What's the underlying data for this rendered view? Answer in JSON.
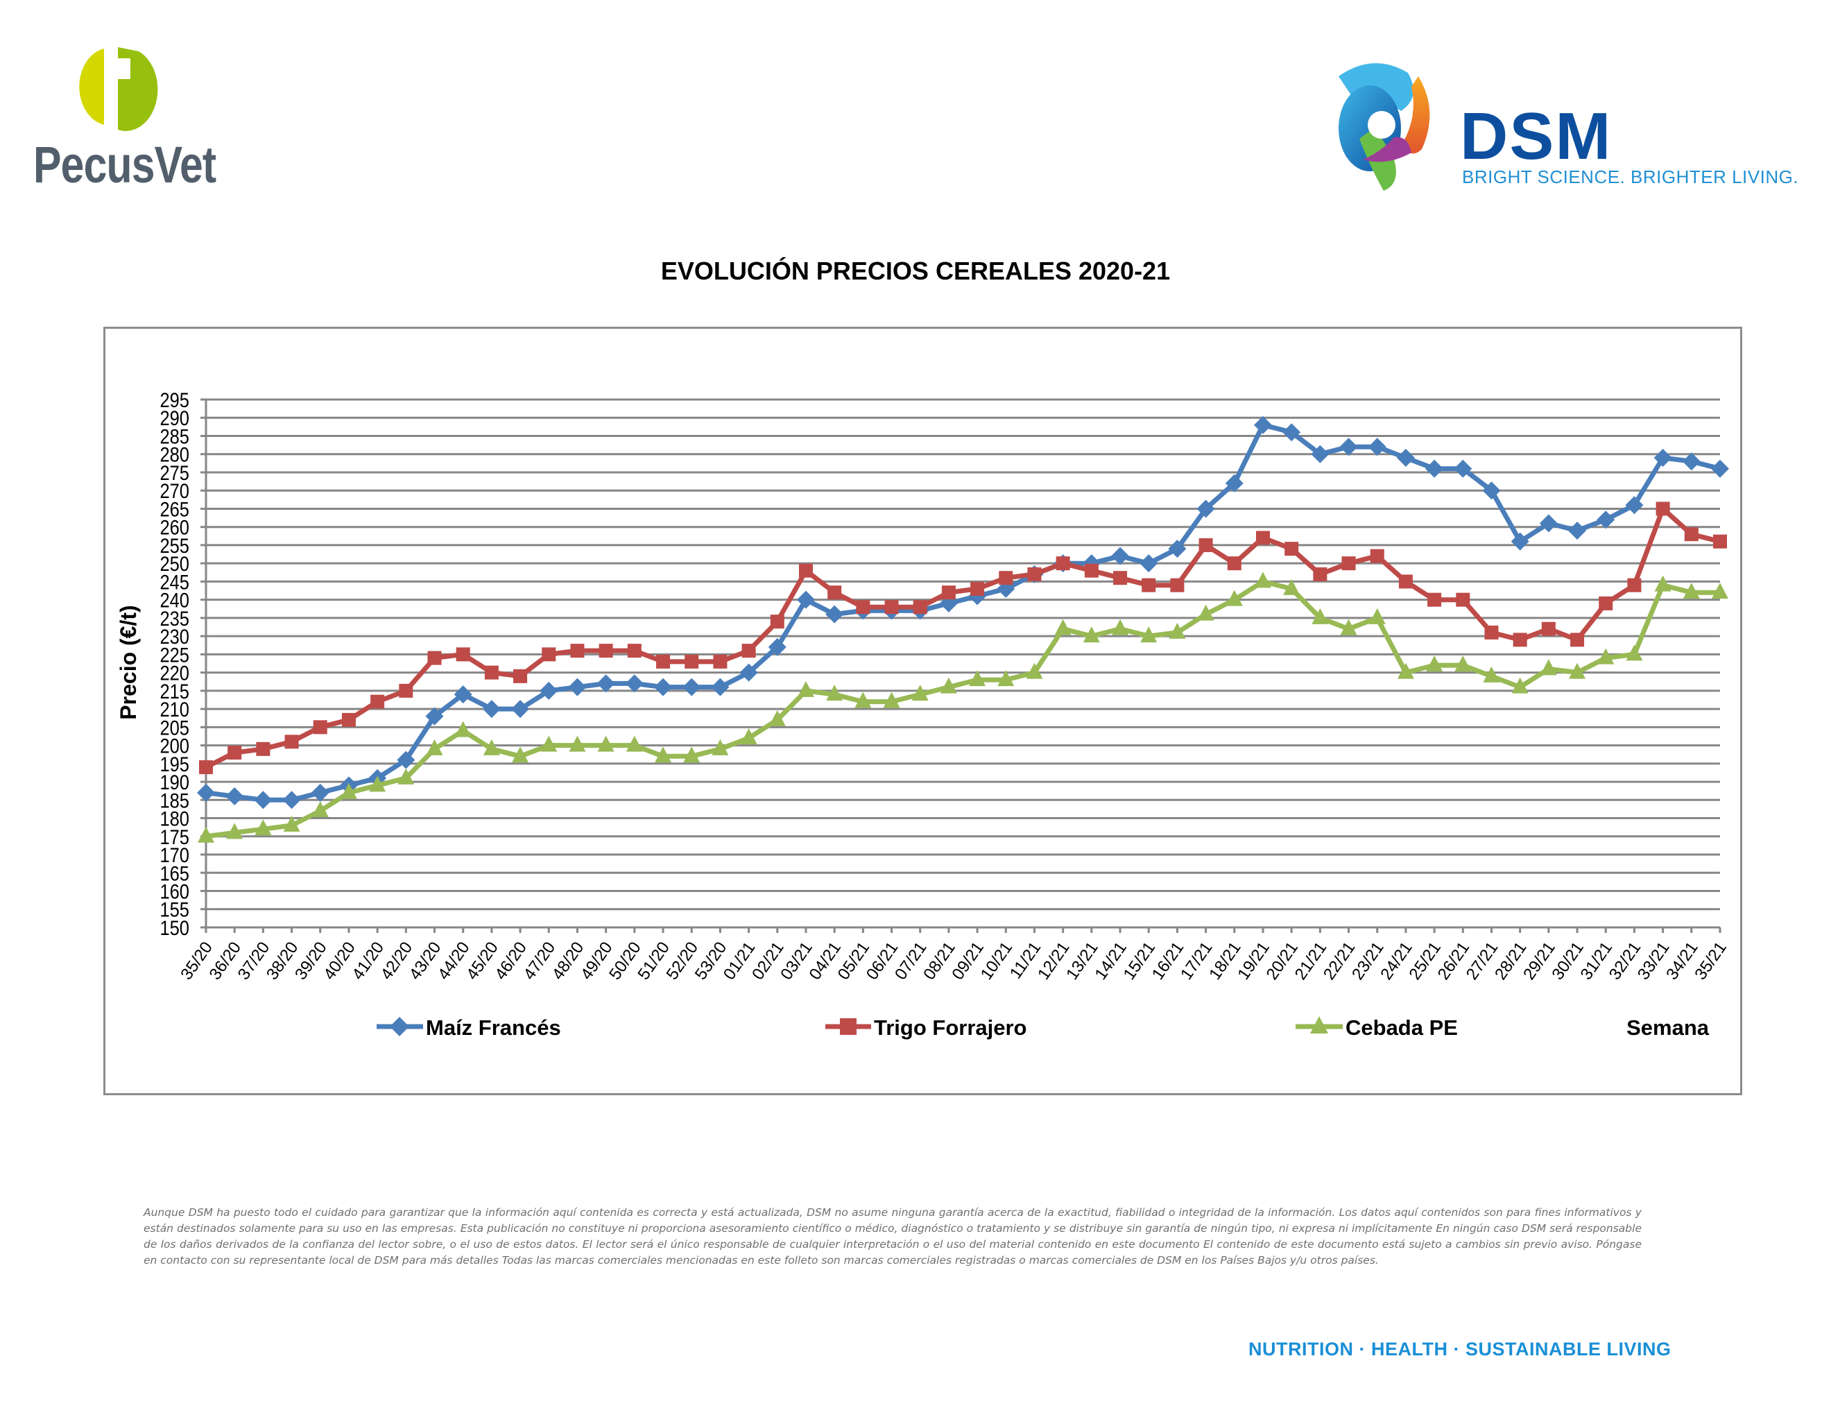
{
  "header": {
    "left_logo_text": "PecusVet",
    "right_logo_text": "DSM",
    "right_logo_tagline": "BRIGHT SCIENCE. BRIGHTER LIVING."
  },
  "footer": {
    "disclaimer": "Aunque DSM ha puesto todo el cuidado para garantizar que la información aquí contenida es correcta y está actualizada, DSM no asume ninguna garantía acerca de la exactitud, fiabilidad o integridad de la información. Los datos aquí contenidos son para fines informativos y están destinados solamente para su uso en las empresas. Esta publicación no constituye ni proporciona asesoramiento científico o médico, diagnóstico o tratamiento y se distribuye sin garantía de ningún tipo, ni expresa ni implícitamente En ningún caso DSM será responsable de los daños derivados de la confianza del lector sobre, o el uso de estos datos. El lector será el único responsable de cualquier interpretación o el uso del material contenido en este documento El contenido de este documento está sujeto a cambios sin previo aviso. Póngase en contacto con su representante local de DSM para más detalles Todas las marcas comerciales mencionadas en este folleto son marcas comerciales registradas o marcas comerciales de DSM en los Países Bajos y/u otros países.",
    "tagline": "NUTRITION  ·  HEALTH  ·  SUSTAINABLE LIVING"
  },
  "colors": {
    "maiz": "#4a7ebb",
    "trigo": "#be4b48",
    "cebada": "#98b954",
    "grid": "#868686",
    "pecus_light": "#d4d800",
    "pecus_dark": "#97c00e",
    "pecus_text": "#525e6c",
    "dsm_blue": "#0d4f9e",
    "dsm_light_blue": "#1f8fd4"
  },
  "chart_data": {
    "type": "line",
    "title": "EVOLUCIÓN PRECIOS CEREALES 2020-21",
    "xlabel": "Semana",
    "ylabel": "Precio (€/t)",
    "ylim": [
      150,
      295
    ],
    "ytick_step": 5,
    "yticks": [
      "150",
      "155",
      "160",
      "165",
      "170",
      "175",
      "180",
      "185",
      "190",
      "195",
      "200",
      "205",
      "210",
      "215",
      "220",
      "225",
      "230",
      "235",
      "240",
      "245",
      "250",
      "255",
      "260",
      "265",
      "270",
      "275",
      "280",
      "285",
      "290",
      "295"
    ],
    "grid": true,
    "legend_position": "bottom",
    "categories": [
      "35/20",
      "36/20",
      "37/20",
      "38/20",
      "39/20",
      "40/20",
      "41/20",
      "42/20",
      "43/20",
      "44/20",
      "45/20",
      "46/20",
      "47/20",
      "48/20",
      "49/20",
      "50/20",
      "51/20",
      "52/20",
      "53/20",
      "01/21",
      "02/21",
      "03/21",
      "04/21",
      "05/21",
      "06/21",
      "07/21",
      "08/21",
      "09/21",
      "10/21",
      "11/21",
      "12/21",
      "13/21",
      "14/21",
      "15/21",
      "16/21",
      "17/21",
      "18/21",
      "19/21",
      "20/21",
      "21/21",
      "22/21",
      "23/21",
      "24/21",
      "25/21",
      "26/21",
      "27/21",
      "28/21",
      "29/21",
      "30/21",
      "31/21",
      "32/21",
      "33/21",
      "34/21",
      "35/21"
    ],
    "series": [
      {
        "name": "Maíz Francés",
        "marker": "diamond",
        "color_key": "maiz",
        "values": [
          187,
          186,
          185,
          185,
          187,
          189,
          191,
          196,
          208,
          214,
          210,
          210,
          215,
          216,
          217,
          217,
          216,
          216,
          216,
          220,
          227,
          240,
          236,
          237,
          237,
          237,
          239,
          241,
          243,
          247,
          250,
          250,
          252,
          250,
          254,
          265,
          272,
          288,
          286,
          280,
          282,
          282,
          279,
          276,
          276,
          270,
          256,
          261,
          259,
          262,
          266,
          279,
          278,
          276
        ]
      },
      {
        "name": "Trigo Forrajero",
        "marker": "square",
        "color_key": "trigo",
        "values": [
          194,
          198,
          199,
          201,
          205,
          207,
          212,
          215,
          224,
          225,
          220,
          219,
          225,
          226,
          226,
          226,
          223,
          223,
          223,
          226,
          234,
          248,
          242,
          238,
          238,
          238,
          242,
          243,
          246,
          247,
          250,
          248,
          246,
          244,
          244,
          255,
          250,
          257,
          254,
          247,
          250,
          252,
          245,
          240,
          240,
          231,
          229,
          232,
          229,
          239,
          244,
          265,
          258,
          256
        ]
      },
      {
        "name": "Cebada PE",
        "marker": "triangle",
        "color_key": "cebada",
        "values": [
          175,
          176,
          177,
          178,
          182,
          187,
          189,
          191,
          199,
          204,
          199,
          197,
          200,
          200,
          200,
          200,
          197,
          197,
          199,
          202,
          207,
          215,
          214,
          212,
          212,
          214,
          216,
          218,
          218,
          220,
          232,
          230,
          232,
          230,
          231,
          236,
          240,
          245,
          243,
          235,
          232,
          235,
          220,
          222,
          222,
          219,
          216,
          221,
          220,
          224,
          225,
          244,
          242,
          242
        ]
      }
    ]
  }
}
